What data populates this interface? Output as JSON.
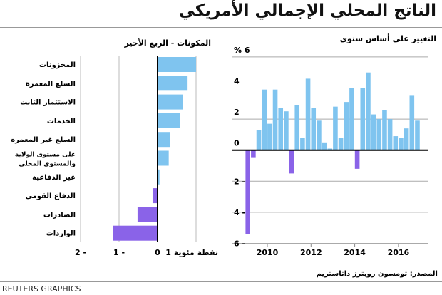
{
  "title": "الناتج المحلي الإجمالي الأمريكي",
  "source": "المصدر: تومسون رويترز داتاستريم",
  "brand": "REUTERS GRAPHICS",
  "colors": {
    "positive": "#7fc4ef",
    "negative": "#8a63e8",
    "axis": "#000",
    "grid": "#aaa"
  },
  "chart_data": [
    {
      "type": "bar",
      "orientation": "horizontal",
      "title": "المكونات - الربع الأخير",
      "categories": [
        "المخزونات",
        "السلع المعمرة",
        "الاستثمار الثابت",
        "الخدمات",
        "السلع غير المعمرة",
        "على مستوى الولاية والمستوى المحلي",
        "غير الدفاعية",
        "الدفاع القومي",
        "الصادرات",
        "الواردات"
      ],
      "values": [
        1.0,
        0.78,
        0.66,
        0.58,
        0.32,
        0.29,
        0.05,
        -0.13,
        -0.52,
        -1.15
      ],
      "xlim": [
        -2,
        1
      ],
      "xlabel": "نقطة مئوية",
      "tick_labels": [
        "2 -",
        "1 -",
        "0",
        "1 نقطة مئوية"
      ],
      "grid": true
    },
    {
      "type": "bar",
      "title": "التغيير على أساس سنوي",
      "x_start": "2009 Q1",
      "frequency": "quarterly",
      "values": [
        -5.4,
        -0.5,
        1.3,
        3.9,
        1.7,
        3.9,
        2.7,
        2.5,
        -1.5,
        2.9,
        0.8,
        4.6,
        2.7,
        1.9,
        0.5,
        0.1,
        2.8,
        0.8,
        3.1,
        4.0,
        -1.2,
        4.0,
        5.0,
        2.3,
        2.0,
        2.6,
        2.0,
        0.9,
        0.8,
        1.4,
        3.5,
        1.9
      ],
      "ylim": [
        -6,
        6
      ],
      "ylabel": "%",
      "y_tick_labels": [
        "% 6",
        "4",
        "2",
        "0",
        "2 -",
        "4 -",
        "6 -"
      ],
      "x_tick_labels": [
        "2010",
        "2012",
        "2014",
        "2016"
      ],
      "grid": true
    }
  ]
}
